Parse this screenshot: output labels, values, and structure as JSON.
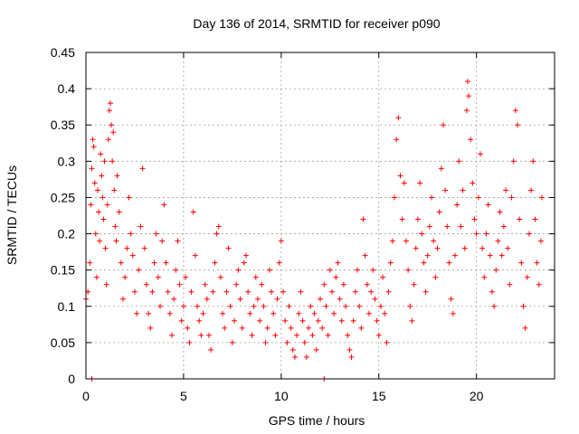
{
  "chart_data": {
    "type": "scatter",
    "title": "Day 136 of 2014, SRMTID for receiver p090",
    "xlabel": "GPS time / hours",
    "ylabel": "SRMTID / TECUs",
    "xlim": [
      0,
      24
    ],
    "ylim": [
      0,
      0.45
    ],
    "xticks": [
      0,
      5,
      10,
      15,
      20
    ],
    "yticks": [
      0,
      0.05,
      0.1,
      0.15,
      0.2,
      0.25,
      0.3,
      0.35,
      0.4,
      0.45
    ],
    "xtick_labels": [
      "0",
      "5",
      "10",
      "15",
      "20"
    ],
    "ytick_labels": [
      "0",
      "0.05",
      "0.1",
      "0.15",
      "0.2",
      "0.25",
      "0.3",
      "0.35",
      "0.4",
      "0.45"
    ],
    "grid": true,
    "marker": "+",
    "color": "#ff0000",
    "series": [
      {
        "name": "SRMTID",
        "points": [
          [
            0.0,
            0.11
          ],
          [
            0.1,
            0.12
          ],
          [
            0.2,
            0.16
          ],
          [
            0.25,
            0.24
          ],
          [
            0.3,
            0.29
          ],
          [
            0.35,
            0.33
          ],
          [
            0.4,
            0.32
          ],
          [
            0.45,
            0.27
          ],
          [
            0.5,
            0.2
          ],
          [
            0.55,
            0.14
          ],
          [
            0.6,
            0.26
          ],
          [
            0.65,
            0.23
          ],
          [
            0.7,
            0.19
          ],
          [
            0.75,
            0.31
          ],
          [
            0.8,
            0.28
          ],
          [
            0.85,
            0.25
          ],
          [
            0.9,
            0.22
          ],
          [
            0.95,
            0.3
          ],
          [
            1.0,
            0.18
          ],
          [
            1.05,
            0.13
          ],
          [
            1.1,
            0.24
          ],
          [
            1.15,
            0.33
          ],
          [
            1.2,
            0.37
          ],
          [
            1.25,
            0.38
          ],
          [
            1.3,
            0.35
          ],
          [
            1.35,
            0.3
          ],
          [
            1.4,
            0.34
          ],
          [
            1.45,
            0.26
          ],
          [
            1.5,
            0.21
          ],
          [
            1.55,
            0.19
          ],
          [
            1.6,
            0.28
          ],
          [
            1.7,
            0.23
          ],
          [
            1.8,
            0.16
          ],
          [
            1.9,
            0.11
          ],
          [
            2.0,
            0.14
          ],
          [
            2.1,
            0.18
          ],
          [
            2.2,
            0.25
          ],
          [
            2.3,
            0.2
          ],
          [
            2.4,
            0.17
          ],
          [
            2.5,
            0.12
          ],
          [
            2.6,
            0.09
          ],
          [
            2.7,
            0.15
          ],
          [
            2.8,
            0.21
          ],
          [
            2.9,
            0.29
          ],
          [
            3.0,
            0.18
          ],
          [
            3.1,
            0.13
          ],
          [
            3.2,
            0.09
          ],
          [
            3.3,
            0.07
          ],
          [
            3.4,
            0.12
          ],
          [
            3.5,
            0.16
          ],
          [
            3.6,
            0.2
          ],
          [
            3.7,
            0.14
          ],
          [
            3.8,
            0.1
          ],
          [
            3.9,
            0.19
          ],
          [
            4.0,
            0.24
          ],
          [
            4.1,
            0.16
          ],
          [
            4.2,
            0.12
          ],
          [
            4.3,
            0.09
          ],
          [
            4.4,
            0.06
          ],
          [
            4.5,
            0.11
          ],
          [
            4.6,
            0.15
          ],
          [
            4.7,
            0.19
          ],
          [
            4.8,
            0.13
          ],
          [
            4.9,
            0.08
          ],
          [
            5.0,
            0.1
          ],
          [
            5.1,
            0.14
          ],
          [
            5.2,
            0.07
          ],
          [
            5.3,
            0.05
          ],
          [
            5.4,
            0.12
          ],
          [
            5.5,
            0.23
          ],
          [
            5.6,
            0.17
          ],
          [
            5.7,
            0.1
          ],
          [
            5.8,
            0.08
          ],
          [
            5.9,
            0.06
          ],
          [
            6.0,
            0.09
          ],
          [
            6.1,
            0.13
          ],
          [
            6.2,
            0.11
          ],
          [
            6.3,
            0.06
          ],
          [
            6.4,
            0.04
          ],
          [
            6.5,
            0.12
          ],
          [
            6.6,
            0.16
          ],
          [
            6.7,
            0.2
          ],
          [
            6.8,
            0.21
          ],
          [
            6.9,
            0.14
          ],
          [
            7.0,
            0.09
          ],
          [
            7.1,
            0.07
          ],
          [
            7.2,
            0.12
          ],
          [
            7.3,
            0.18
          ],
          [
            7.4,
            0.1
          ],
          [
            7.5,
            0.05
          ],
          [
            7.6,
            0.08
          ],
          [
            7.7,
            0.13
          ],
          [
            7.8,
            0.15
          ],
          [
            7.9,
            0.11
          ],
          [
            8.0,
            0.07
          ],
          [
            8.1,
            0.16
          ],
          [
            8.2,
            0.17
          ],
          [
            8.3,
            0.12
          ],
          [
            8.4,
            0.09
          ],
          [
            8.5,
            0.06
          ],
          [
            8.6,
            0.1
          ],
          [
            8.7,
            0.14
          ],
          [
            8.8,
            0.11
          ],
          [
            8.9,
            0.08
          ],
          [
            9.0,
            0.13
          ],
          [
            9.1,
            0.1
          ],
          [
            9.2,
            0.05
          ],
          [
            9.3,
            0.07
          ],
          [
            9.4,
            0.15
          ],
          [
            9.5,
            0.12
          ],
          [
            9.6,
            0.09
          ],
          [
            9.7,
            0.06
          ],
          [
            9.8,
            0.11
          ],
          [
            9.9,
            0.16
          ],
          [
            10.0,
            0.19
          ],
          [
            10.1,
            0.12
          ],
          [
            10.2,
            0.08
          ],
          [
            10.3,
            0.05
          ],
          [
            10.4,
            0.1
          ],
          [
            10.5,
            0.07
          ],
          [
            10.6,
            0.04
          ],
          [
            10.7,
            0.03
          ],
          [
            10.8,
            0.06
          ],
          [
            10.9,
            0.09
          ],
          [
            11.0,
            0.12
          ],
          [
            11.1,
            0.08
          ],
          [
            11.2,
            0.05
          ],
          [
            11.3,
            0.03
          ],
          [
            11.4,
            0.07
          ],
          [
            11.5,
            0.1
          ],
          [
            11.6,
            0.06
          ],
          [
            11.7,
            0.09
          ],
          [
            11.8,
            0.04
          ],
          [
            11.9,
            0.08
          ],
          [
            12.0,
            0.11
          ],
          [
            12.1,
            0.07
          ],
          [
            12.2,
            0.13
          ],
          [
            12.3,
            0.1
          ],
          [
            12.4,
            0.06
          ],
          [
            12.5,
            0.15
          ],
          [
            12.6,
            0.12
          ],
          [
            12.7,
            0.09
          ],
          [
            12.8,
            0.14
          ],
          [
            12.9,
            0.16
          ],
          [
            13.0,
            0.11
          ],
          [
            13.1,
            0.08
          ],
          [
            13.2,
            0.13
          ],
          [
            13.3,
            0.1
          ],
          [
            13.4,
            0.06
          ],
          [
            13.5,
            0.04
          ],
          [
            13.6,
            0.03
          ],
          [
            13.7,
            0.08
          ],
          [
            13.8,
            0.12
          ],
          [
            13.9,
            0.15
          ],
          [
            14.0,
            0.1
          ],
          [
            14.1,
            0.07
          ],
          [
            14.2,
            0.22
          ],
          [
            14.3,
            0.17
          ],
          [
            14.4,
            0.13
          ],
          [
            14.5,
            0.09
          ],
          [
            14.6,
            0.12
          ],
          [
            14.7,
            0.15
          ],
          [
            14.8,
            0.11
          ],
          [
            14.9,
            0.08
          ],
          [
            15.0,
            0.06
          ],
          [
            15.1,
            0.1
          ],
          [
            15.2,
            0.14
          ],
          [
            15.3,
            0.09
          ],
          [
            15.4,
            0.05
          ],
          [
            15.5,
            0.12
          ],
          [
            15.6,
            0.16
          ],
          [
            15.7,
            0.19
          ],
          [
            15.8,
            0.25
          ],
          [
            15.9,
            0.33
          ],
          [
            16.0,
            0.36
          ],
          [
            16.1,
            0.28
          ],
          [
            16.2,
            0.22
          ],
          [
            16.3,
            0.27
          ],
          [
            16.4,
            0.19
          ],
          [
            16.5,
            0.15
          ],
          [
            16.6,
            0.1
          ],
          [
            16.7,
            0.08
          ],
          [
            16.8,
            0.13
          ],
          [
            16.9,
            0.18
          ],
          [
            17.0,
            0.22
          ],
          [
            17.1,
            0.27
          ],
          [
            17.2,
            0.2
          ],
          [
            17.3,
            0.16
          ],
          [
            17.4,
            0.12
          ],
          [
            17.5,
            0.17
          ],
          [
            17.6,
            0.21
          ],
          [
            17.7,
            0.25
          ],
          [
            17.8,
            0.19
          ],
          [
            17.9,
            0.14
          ],
          [
            18.0,
            0.18
          ],
          [
            18.1,
            0.23
          ],
          [
            18.2,
            0.29
          ],
          [
            18.3,
            0.35
          ],
          [
            18.4,
            0.26
          ],
          [
            18.5,
            0.21
          ],
          [
            18.6,
            0.16
          ],
          [
            18.7,
            0.11
          ],
          [
            18.8,
            0.09
          ],
          [
            18.9,
            0.17
          ],
          [
            19.0,
            0.24
          ],
          [
            19.1,
            0.3
          ],
          [
            19.2,
            0.21
          ],
          [
            19.3,
            0.26
          ],
          [
            19.4,
            0.18
          ],
          [
            19.5,
            0.37
          ],
          [
            19.55,
            0.41
          ],
          [
            19.6,
            0.39
          ],
          [
            19.7,
            0.33
          ],
          [
            19.8,
            0.27
          ],
          [
            19.9,
            0.22
          ],
          [
            20.0,
            0.2
          ],
          [
            20.1,
            0.25
          ],
          [
            20.2,
            0.31
          ],
          [
            20.3,
            0.18
          ],
          [
            20.4,
            0.14
          ],
          [
            20.5,
            0.2
          ],
          [
            20.6,
            0.24
          ],
          [
            20.7,
            0.17
          ],
          [
            20.8,
            0.12
          ],
          [
            20.9,
            0.1
          ],
          [
            21.0,
            0.15
          ],
          [
            21.1,
            0.19
          ],
          [
            21.2,
            0.23
          ],
          [
            21.3,
            0.17
          ],
          [
            21.4,
            0.21
          ],
          [
            21.5,
            0.26
          ],
          [
            21.6,
            0.18
          ],
          [
            21.7,
            0.13
          ],
          [
            21.8,
            0.25
          ],
          [
            21.9,
            0.3
          ],
          [
            22.0,
            0.37
          ],
          [
            22.1,
            0.35
          ],
          [
            22.2,
            0.22
          ],
          [
            22.3,
            0.16
          ],
          [
            22.4,
            0.1
          ],
          [
            22.5,
            0.07
          ],
          [
            22.6,
            0.14
          ],
          [
            22.7,
            0.2
          ],
          [
            22.8,
            0.26
          ],
          [
            22.9,
            0.3
          ],
          [
            23.0,
            0.22
          ],
          [
            23.1,
            0.16
          ],
          [
            23.2,
            0.13
          ],
          [
            23.3,
            0.19
          ],
          [
            23.35,
            0.25
          ],
          [
            0.3,
            0.0
          ],
          [
            12.2,
            0.0
          ]
        ]
      }
    ]
  }
}
